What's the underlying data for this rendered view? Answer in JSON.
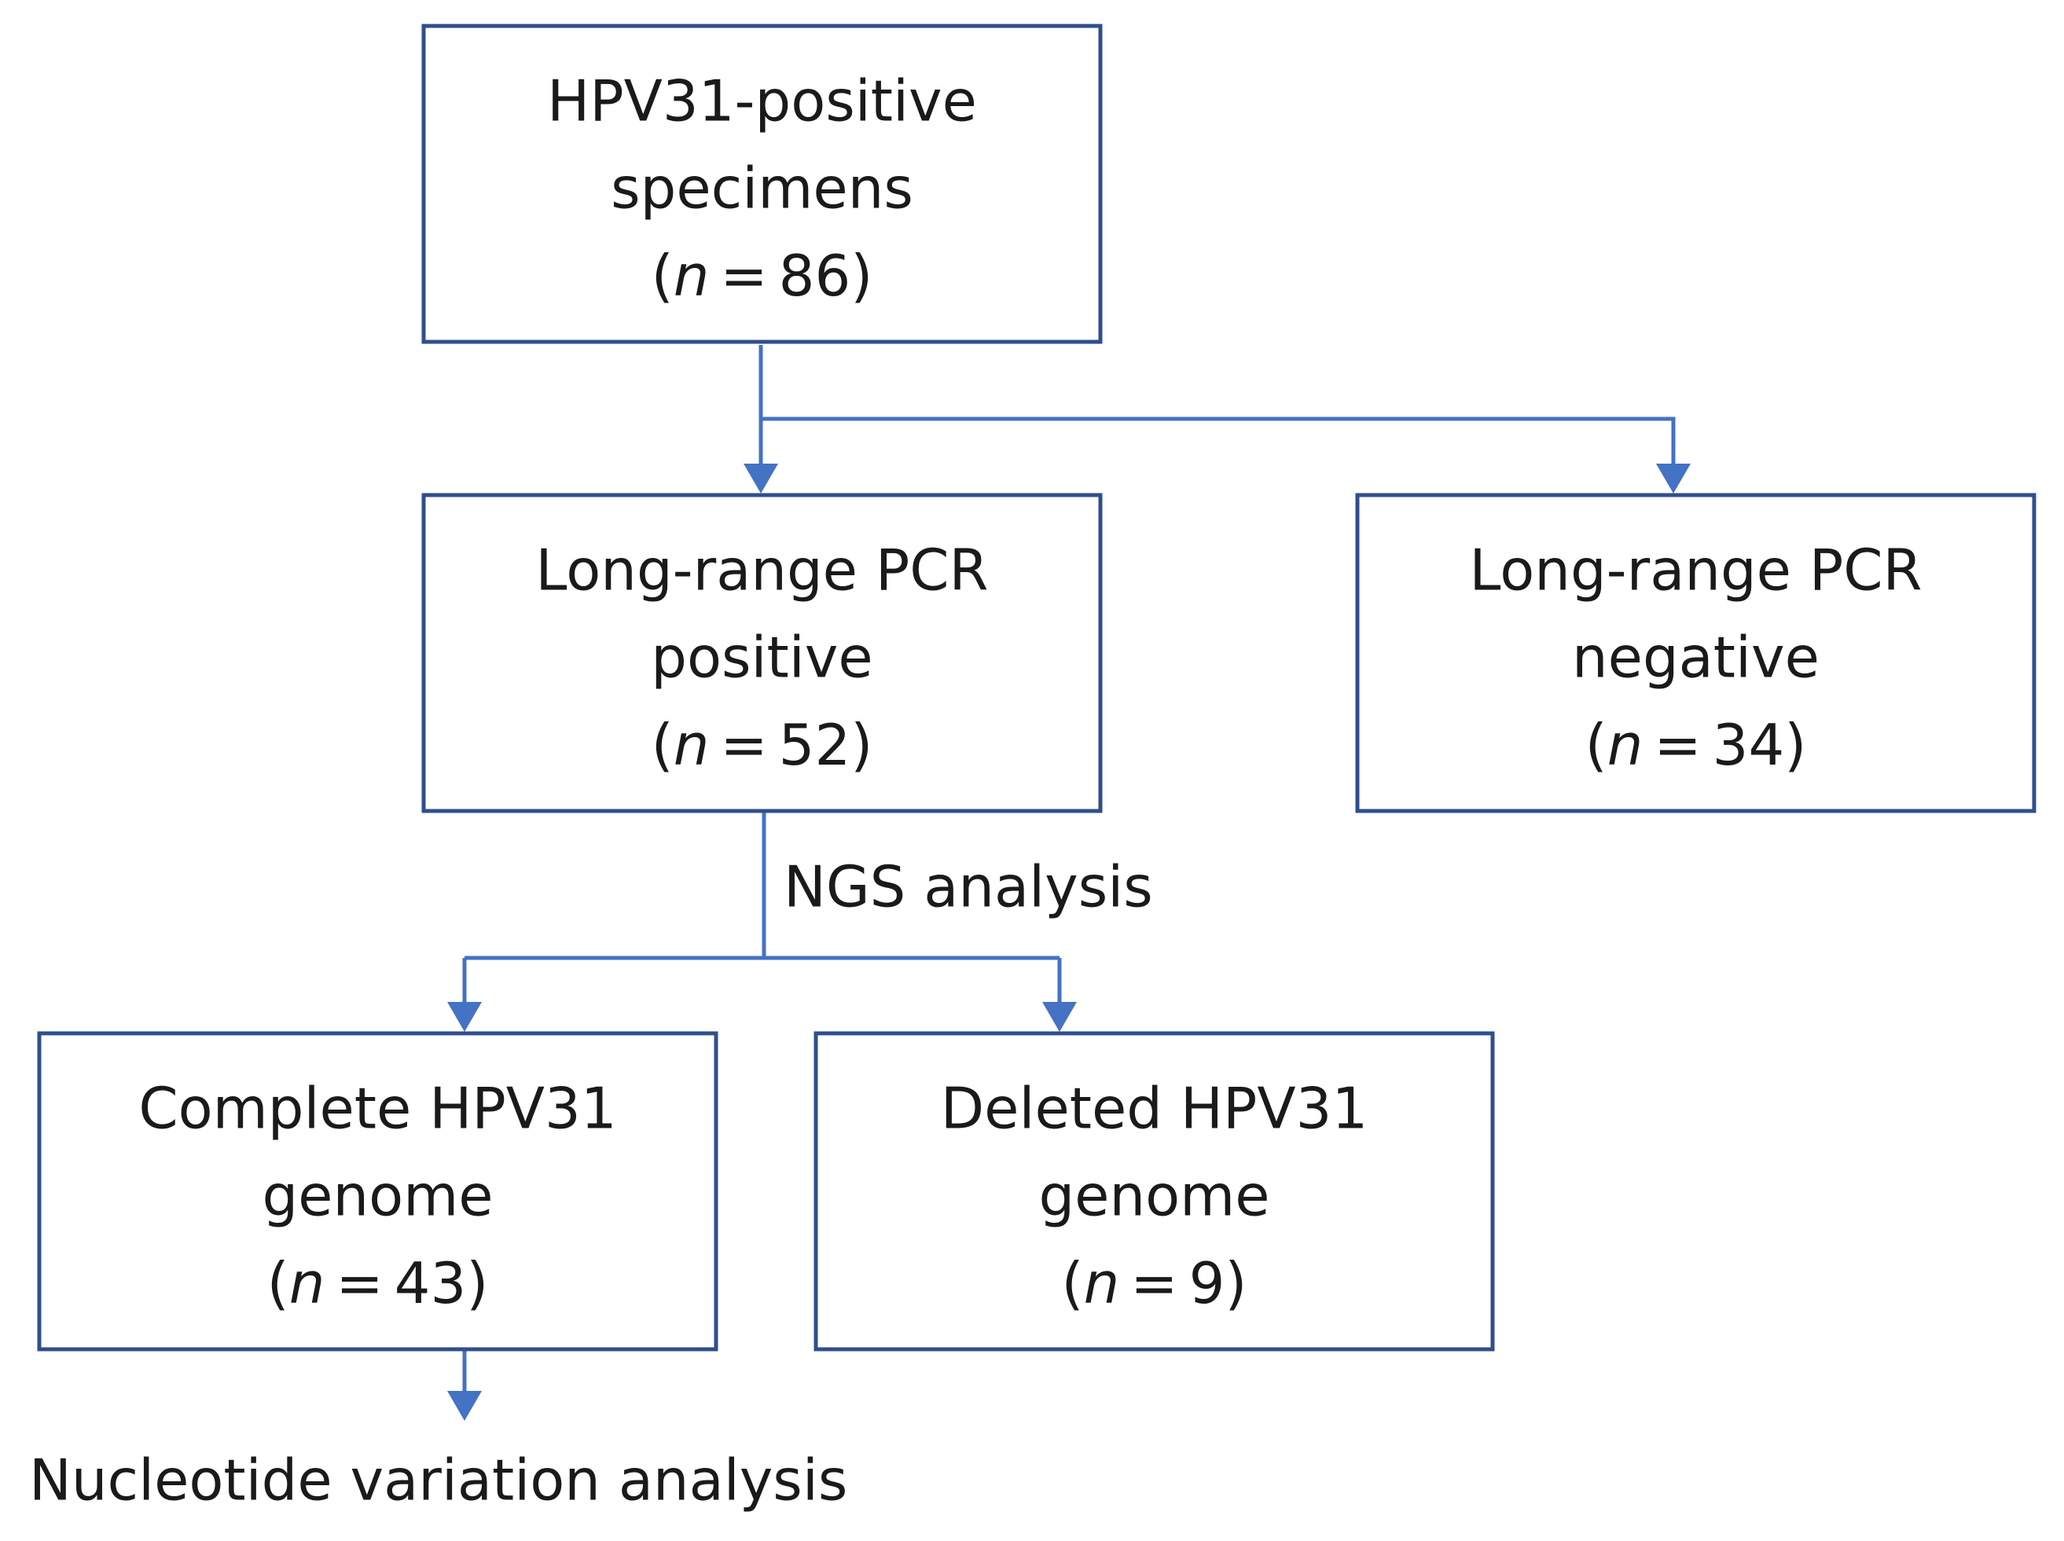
{
  "count_format": {
    "open": "(",
    "symbol": "n",
    "equals": "=",
    "close": ")"
  },
  "nodes": [
    {
      "lines": [
        "HPV31-positive",
        "specimens"
      ],
      "count": 86
    },
    {
      "lines": [
        "Long-range PCR",
        "positive"
      ],
      "count": 52
    },
    {
      "lines": [
        "Long-range PCR",
        "negative"
      ],
      "count": 34
    },
    {
      "lines": [
        "Complete HPV31",
        "genome"
      ],
      "count": 43
    },
    {
      "lines": [
        "Deleted HPV31",
        "genome"
      ],
      "count": 9
    }
  ],
  "edge_labels": [
    "NGS analysis"
  ],
  "outcome": "Nucleotide variation analysis"
}
